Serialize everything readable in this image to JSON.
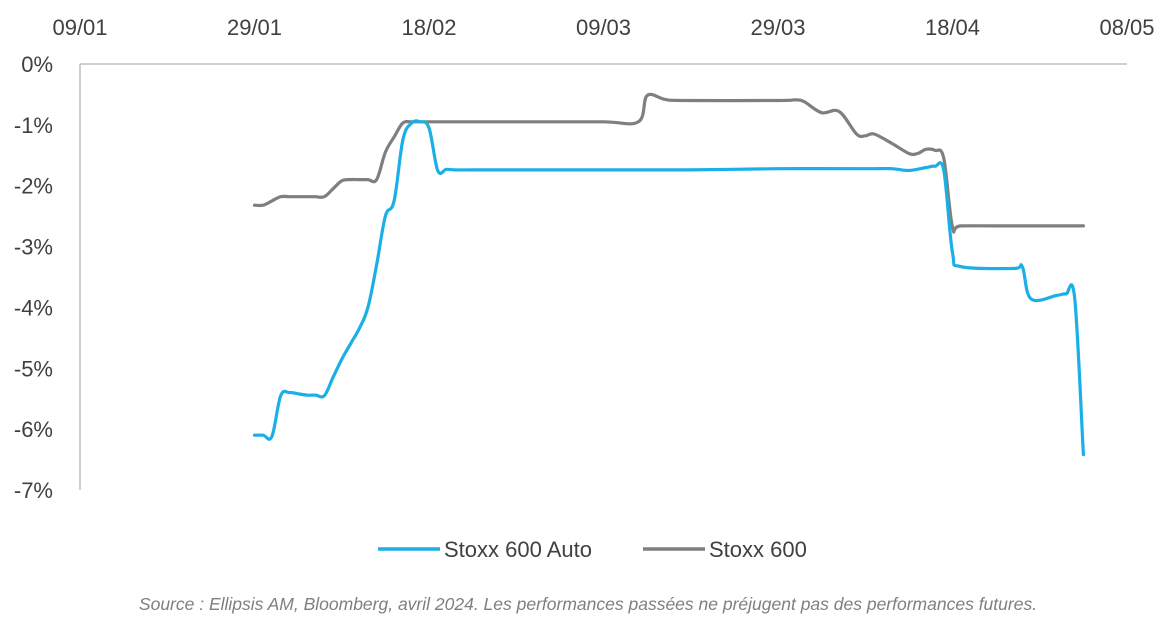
{
  "chart_data": {
    "type": "line",
    "x_tick_labels": [
      "09/01",
      "29/01",
      "18/02",
      "09/03",
      "29/03",
      "18/04",
      "08/05"
    ],
    "x_ticks_day": [
      9,
      29,
      49,
      69,
      89,
      109,
      129
    ],
    "y_tick_labels": [
      "0%",
      "-1%",
      "-2%",
      "-3%",
      "-4%",
      "-5%",
      "-6%",
      "-7%"
    ],
    "y_ticks": [
      0,
      -1,
      -2,
      -3,
      -4,
      -5,
      -6,
      -7
    ],
    "ylim": [
      -7,
      0
    ],
    "x_axis_position": "top",
    "grid": false,
    "legend_position": "bottom",
    "series": [
      {
        "name": "Stoxx 600 Auto",
        "color": "#1AAFE6",
        "dates": [
          "29/01",
          "30/01",
          "31/01",
          "01/02",
          "02/02",
          "03/02",
          "04/02",
          "05/02",
          "06/02",
          "07/02",
          "08/02",
          "09/02",
          "10/02",
          "11/02",
          "12/02",
          "13/02",
          "14/02",
          "15/02",
          "16/02",
          "17/02",
          "18/02",
          "19/02",
          "20/02",
          "21/02",
          "23/02",
          "01/03",
          "09/03",
          "19/03",
          "29/03",
          "08/04",
          "11/04",
          "13/04",
          "15/04",
          "16/04",
          "17/04",
          "18/04",
          "19/04",
          "25/04",
          "26/04",
          "27/04",
          "30/04",
          "01/05",
          "02/05",
          "03/05"
        ],
        "values": [
          -6.1,
          -6.1,
          -6.12,
          -5.45,
          -5.4,
          -5.42,
          -5.44,
          -5.44,
          -5.45,
          -5.15,
          -4.85,
          -4.6,
          -4.35,
          -4.0,
          -3.3,
          -2.5,
          -2.25,
          -1.25,
          -0.97,
          -0.95,
          -1.05,
          -1.75,
          -1.73,
          -1.74,
          -1.74,
          -1.74,
          -1.74,
          -1.74,
          -1.72,
          -1.72,
          -1.72,
          -1.75,
          -1.7,
          -1.68,
          -1.75,
          -3.1,
          -3.33,
          -3.36,
          -3.33,
          -3.86,
          -3.8,
          -3.78,
          -3.85,
          -6.42
        ]
      },
      {
        "name": "Stoxx 600",
        "color": "#7F7F7F",
        "dates": [
          "29/01",
          "30/01",
          "31/01",
          "01/02",
          "02/02",
          "03/02",
          "04/02",
          "05/02",
          "06/02",
          "07/02",
          "08/02",
          "09/02",
          "10/02",
          "11/02",
          "12/02",
          "13/02",
          "14/02",
          "15/02",
          "16/02",
          "17/02",
          "18/02",
          "19/02",
          "01/03",
          "09/03",
          "13/03",
          "14/03",
          "16/03",
          "18/03",
          "29/03",
          "31/03",
          "01/04",
          "03/04",
          "05/04",
          "07/04",
          "08/04",
          "09/04",
          "11/04",
          "13/04",
          "14/04",
          "15/04",
          "16/04",
          "17/04",
          "18/04",
          "19/04",
          "25/04",
          "01/05",
          "03/05"
        ],
        "values": [
          -2.32,
          -2.32,
          -2.25,
          -2.18,
          -2.18,
          -2.18,
          -2.18,
          -2.18,
          -2.18,
          -2.05,
          -1.92,
          -1.9,
          -1.9,
          -1.9,
          -1.9,
          -1.45,
          -1.2,
          -0.97,
          -0.95,
          -0.95,
          -0.95,
          -0.95,
          -0.95,
          -0.95,
          -0.95,
          -0.52,
          -0.58,
          -0.6,
          -0.6,
          -0.59,
          -0.62,
          -0.8,
          -0.78,
          -1.15,
          -1.18,
          -1.15,
          -1.3,
          -1.47,
          -1.47,
          -1.4,
          -1.42,
          -1.55,
          -2.68,
          -2.66,
          -2.66,
          -2.66,
          -2.66
        ]
      }
    ]
  },
  "source_note": "Source : Ellipsis AM, Bloomberg, avril 2024. Les performances passées ne préjugent pas des performances futures."
}
